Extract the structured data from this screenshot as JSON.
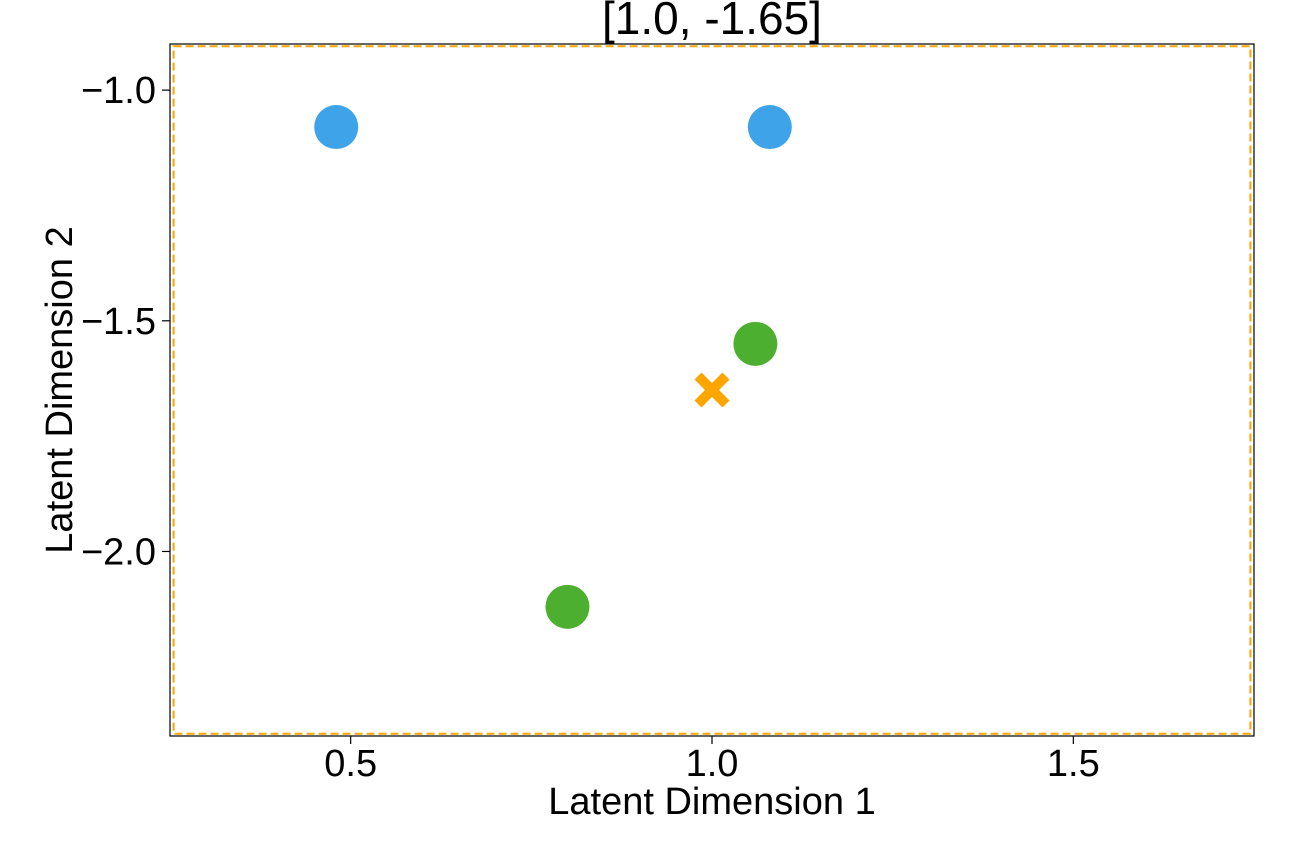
{
  "chart_data": {
    "type": "scatter",
    "title": "[1.0, -1.65]",
    "xlabel": "Latent Dimension 1",
    "ylabel": "Latent Dimension 2",
    "xlim": [
      0.25,
      1.75
    ],
    "ylim": [
      -2.4,
      -0.9
    ],
    "xticks": [
      0.5,
      1.0,
      1.5
    ],
    "xtick_labels": [
      "0.5",
      "1.0",
      "1.5"
    ],
    "yticks": [
      -1.0,
      -1.5,
      -2.0
    ],
    "ytick_labels": [
      "−1.0",
      "−1.5",
      "−2.0"
    ],
    "grid": false,
    "series": [
      {
        "color": "#3fa3ea",
        "marker": "circle",
        "points": [
          [
            0.48,
            -1.08
          ],
          [
            1.08,
            -1.08
          ]
        ]
      },
      {
        "color": "#4daf2f",
        "marker": "circle",
        "points": [
          [
            1.06,
            -1.55
          ],
          [
            0.8,
            -2.12
          ]
        ]
      },
      {
        "color": "#ffa500",
        "marker": "x",
        "points": [
          [
            1.0,
            -1.65
          ]
        ]
      }
    ],
    "region_box": {
      "color": "#ffa500",
      "style": "dashed",
      "x": [
        0.255,
        1.745
      ],
      "y": [
        -2.395,
        -0.905
      ]
    }
  }
}
